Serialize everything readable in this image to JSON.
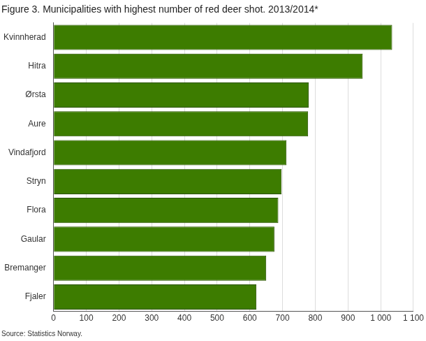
{
  "chart_data": {
    "type": "bar",
    "orientation": "horizontal",
    "title": "Figure 3. Municipalities with highest number of red deer shot. 2013/2014*",
    "source": "Source: Statistics Norway.",
    "categories": [
      "Kvinnherad",
      "Hitra",
      "Ørsta",
      "Aure",
      "Vindafjord",
      "Stryn",
      "Flora",
      "Gaular",
      "Bremanger",
      "Fjaler"
    ],
    "values": [
      1035,
      945,
      780,
      778,
      712,
      697,
      687,
      675,
      650,
      620
    ],
    "color": "#3d7c00",
    "xlim": [
      0,
      1100
    ],
    "xticks": [
      0,
      100,
      200,
      300,
      400,
      500,
      600,
      700,
      800,
      900,
      {
        "value": 1000,
        "label": "1 000"
      },
      {
        "value": 1100,
        "label": "1 100"
      }
    ],
    "grid": true
  }
}
